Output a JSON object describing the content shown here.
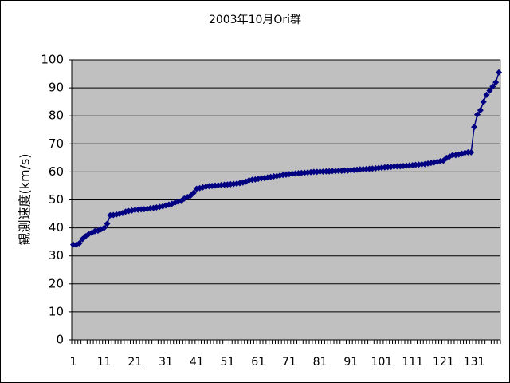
{
  "chart_data": {
    "type": "line",
    "title": "2003年10月Ori群",
    "y_label": "観測速度(km/s)",
    "categories": [
      1,
      null,
      null,
      null,
      null,
      null,
      null,
      null,
      null,
      null,
      11,
      null,
      null,
      null,
      null,
      null,
      null,
      null,
      null,
      null,
      21,
      null,
      null,
      null,
      null,
      null,
      null,
      null,
      null,
      null,
      31,
      null,
      null,
      null,
      null,
      null,
      null,
      null,
      null,
      null,
      41,
      null,
      null,
      null,
      null,
      null,
      null,
      null,
      null,
      null,
      51,
      null,
      null,
      null,
      null,
      null,
      null,
      null,
      null,
      null,
      61,
      null,
      null,
      null,
      null,
      null,
      null,
      null,
      null,
      null,
      71,
      null,
      null,
      null,
      null,
      null,
      null,
      null,
      null,
      null,
      81,
      null,
      null,
      null,
      null,
      null,
      null,
      null,
      null,
      null,
      91,
      null,
      null,
      null,
      null,
      null,
      null,
      null,
      null,
      null,
      101,
      null,
      null,
      null,
      null,
      null,
      null,
      null,
      null,
      null,
      111,
      null,
      null,
      null,
      null,
      null,
      null,
      null,
      null,
      null,
      121,
      null,
      null,
      null,
      null,
      null,
      null,
      null,
      null,
      null,
      131,
      null,
      null,
      null,
      null,
      null,
      null,
      null,
      null
    ],
    "values": [
      34,
      34,
      34.5,
      36,
      37,
      37.8,
      38.2,
      38.8,
      39,
      39.5,
      40,
      41.5,
      44.5,
      44.6,
      44.8,
      45,
      45.3,
      45.8,
      46,
      46.2,
      46.4,
      46.5,
      46.6,
      46.7,
      46.8,
      47,
      47.1,
      47.3,
      47.5,
      47.7,
      48,
      48.3,
      48.6,
      49,
      49.3,
      49.6,
      50.5,
      51,
      51.5,
      52.5,
      54,
      54.2,
      54.5,
      54.7,
      54.9,
      55,
      55.1,
      55.2,
      55.3,
      55.4,
      55.5,
      55.6,
      55.7,
      55.8,
      56,
      56.2,
      56.5,
      57,
      57.2,
      57.3,
      57.5,
      57.7,
      57.8,
      58,
      58.2,
      58.4,
      58.5,
      58.7,
      58.9,
      59,
      59.2,
      59.3,
      59.4,
      59.5,
      59.6,
      59.7,
      59.8,
      59.9,
      60,
      60,
      60.1,
      60.1,
      60.2,
      60.2,
      60.3,
      60.3,
      60.4,
      60.4,
      60.5,
      60.5,
      60.6,
      60.7,
      60.8,
      60.9,
      61,
      61,
      61.1,
      61.2,
      61.3,
      61.4,
      61.5,
      61.6,
      61.7,
      61.8,
      61.9,
      62,
      62,
      62.1,
      62.2,
      62.3,
      62.4,
      62.5,
      62.6,
      62.7,
      62.8,
      63,
      63.2,
      63.4,
      63.6,
      63.8,
      64,
      65,
      65.5,
      66,
      66,
      66.2,
      66.5,
      66.8,
      67,
      67,
      76,
      80.5,
      82,
      85,
      87.5,
      89,
      90.5,
      92,
      95.5
    ],
    "color": "#000080",
    "plot_background": "#c0c0c0",
    "ylim": [
      0,
      100
    ],
    "yticks": [
      0,
      10,
      20,
      30,
      40,
      50,
      60,
      70,
      80,
      90,
      100
    ],
    "grid": true
  }
}
